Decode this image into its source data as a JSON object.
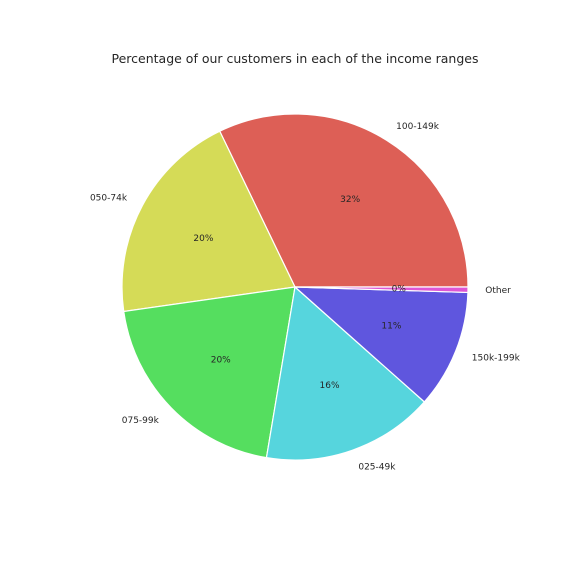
{
  "chart_data": {
    "type": "pie",
    "title": "Percentage of our customers in each of the income ranges",
    "categories": [
      "100-149k",
      "050-74k",
      "075-99k",
      "025-49k",
      "150k-199k",
      "Other"
    ],
    "values": [
      32,
      20,
      20,
      16,
      11,
      0.5
    ],
    "value_labels": [
      "32%",
      "20%",
      "20%",
      "16%",
      "11%",
      "0%"
    ],
    "colors": [
      "#dd5f56",
      "#d5db57",
      "#55de5f",
      "#56d5dd",
      "#5f56de",
      "#dd56d5"
    ],
    "start_angle_deg": 0,
    "direction": "counterclockwise",
    "legend": "none"
  }
}
